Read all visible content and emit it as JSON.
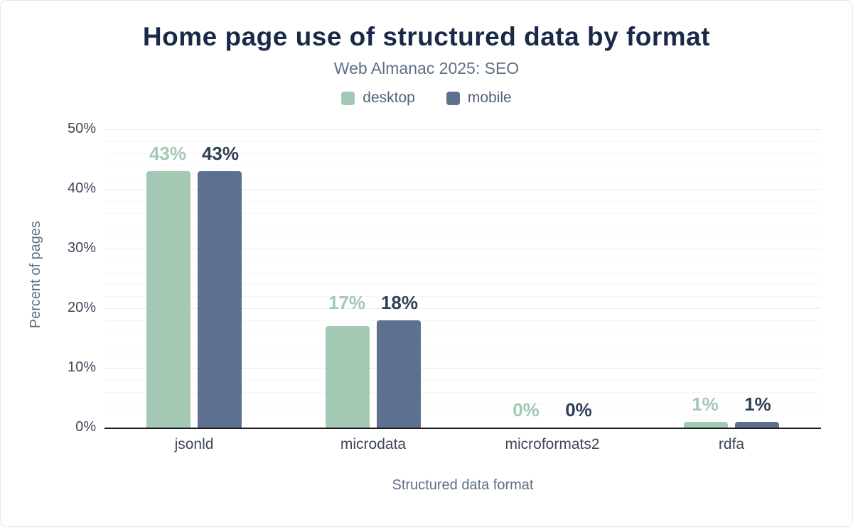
{
  "chart_data": {
    "type": "bar",
    "title": "Home page use of structured data by format",
    "subtitle": "Web Almanac 2025: SEO",
    "xlabel": "Structured data format",
    "ylabel": "Percent of pages",
    "categories": [
      "jsonld",
      "microdata",
      "microformats2",
      "rdfa"
    ],
    "series": [
      {
        "name": "desktop",
        "values": [
          43,
          17,
          0,
          1
        ],
        "color": "#a3c9b4",
        "label_color": "#a3c9b4"
      },
      {
        "name": "mobile",
        "values": [
          43,
          18,
          0,
          1
        ],
        "color": "#5d7090",
        "label_color": "#2f4058"
      }
    ],
    "ylim": [
      0,
      50
    ],
    "ytick_values": [
      0,
      10,
      20,
      30,
      40,
      50
    ],
    "ytick_labels": [
      "0%",
      "10%",
      "20%",
      "30%",
      "40%",
      "50%"
    ],
    "minor_grid_step": 2,
    "grid": "horizontal",
    "legend_position": "top",
    "value_label_suffix": "%"
  }
}
